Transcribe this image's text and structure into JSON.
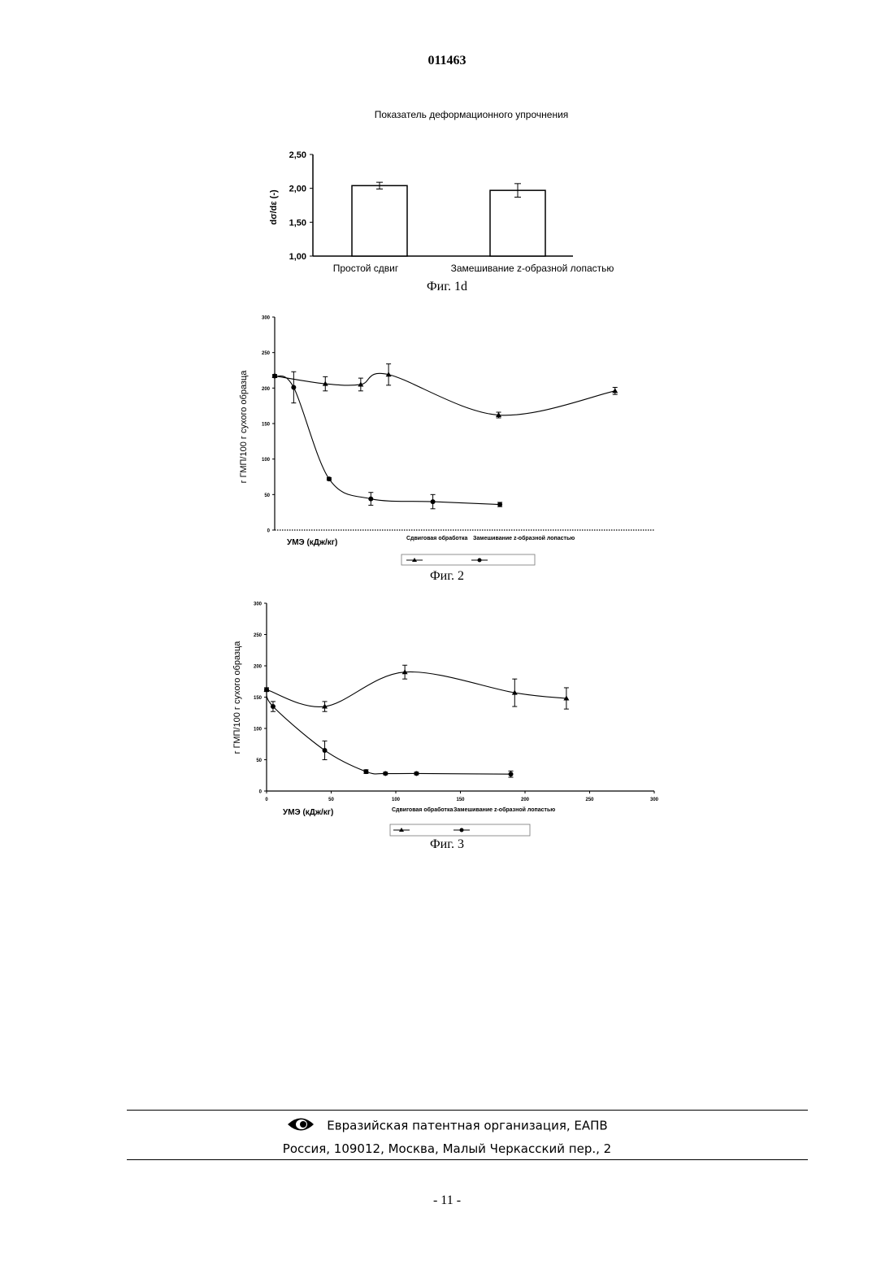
{
  "document": {
    "number": "011463",
    "page_number": "- 11 -"
  },
  "figures": [
    {
      "caption": "Фиг. 1d"
    },
    {
      "caption": "Фиг. 2"
    },
    {
      "caption": "Фиг. 3"
    }
  ],
  "footer": {
    "org": "Евразийская патентная организация, ЕАПВ",
    "address": "Россия, 109012, Москва, Малый Черкасский пер., 2",
    "logo_icon": "eye-logo-icon"
  },
  "chart_data": [
    {
      "type": "bar",
      "title": "Показатель деформационного упрочнения",
      "ylabel": "dσ/dε (-)",
      "xlabel": "",
      "ylim": [
        1.0,
        2.5
      ],
      "yticks": [
        "1,00",
        "1,50",
        "2,00",
        "2,50"
      ],
      "categories": [
        "Простой сдвиг",
        "Замешивание z-образной лопастью"
      ],
      "values": [
        2.04,
        1.97
      ],
      "errors": [
        0.05,
        0.1
      ],
      "grid": false
    },
    {
      "type": "line",
      "ylabel": "г ГМП/100 г сухого образца",
      "xlabel": "УМЭ (кДж/кг)",
      "ylim": [
        0,
        300
      ],
      "yticks": [
        "0",
        "50",
        "100",
        "150",
        "200",
        "250",
        "300"
      ],
      "xticks": [],
      "xlim": [
        0,
        300
      ],
      "legend": {
        "position": "bottom-center",
        "entries": [
          "Сдвиговая обработка",
          "Замешивание z-образной лопастью"
        ]
      },
      "series": [
        {
          "name": "Сдвиговая обработка",
          "marker": "triangle",
          "x": [
            0,
            40,
            68,
            90,
            177,
            269
          ],
          "y": [
            217,
            206,
            205,
            219,
            162,
            196
          ],
          "err": [
            2,
            10,
            9,
            15,
            4,
            5
          ]
        },
        {
          "name": "Замешивание z-образной лопастью",
          "marker": "circle",
          "x": [
            0,
            15,
            43,
            76,
            125,
            178
          ],
          "y": [
            217,
            201,
            72,
            44,
            40,
            36
          ],
          "err": [
            2,
            22,
            2,
            9,
            10,
            3
          ]
        }
      ],
      "grid": false
    },
    {
      "type": "line",
      "ylabel": "г ГМП/100 г сухого образца",
      "xlabel": "УМЭ (кДж/кг)",
      "ylim": [
        0,
        300
      ],
      "yticks": [
        "0",
        "50",
        "100",
        "150",
        "200",
        "250",
        "300"
      ],
      "xlim": [
        0,
        300
      ],
      "xticks": [
        "0",
        "50",
        "100",
        "150",
        "200",
        "250",
        "300"
      ],
      "legend": {
        "position": "bottom-center",
        "entries": [
          "Сдвиговая обработка",
          "Замешивание z-образной лопастью"
        ]
      },
      "series": [
        {
          "name": "Сдвиговая обработка",
          "marker": "triangle",
          "x": [
            0,
            45,
            107,
            192,
            232
          ],
          "y": [
            162,
            135,
            190,
            157,
            148
          ],
          "err": [
            3,
            8,
            11,
            22,
            17
          ]
        },
        {
          "name": "Замешивание z-образной лопастью",
          "marker": "circle",
          "x": [
            0,
            5,
            45,
            77,
            92,
            116,
            189
          ],
          "y": [
            162,
            135,
            65,
            31,
            28,
            28,
            27
          ],
          "err": [
            3,
            8,
            15,
            3,
            2,
            2,
            5
          ]
        }
      ],
      "grid": false
    }
  ]
}
